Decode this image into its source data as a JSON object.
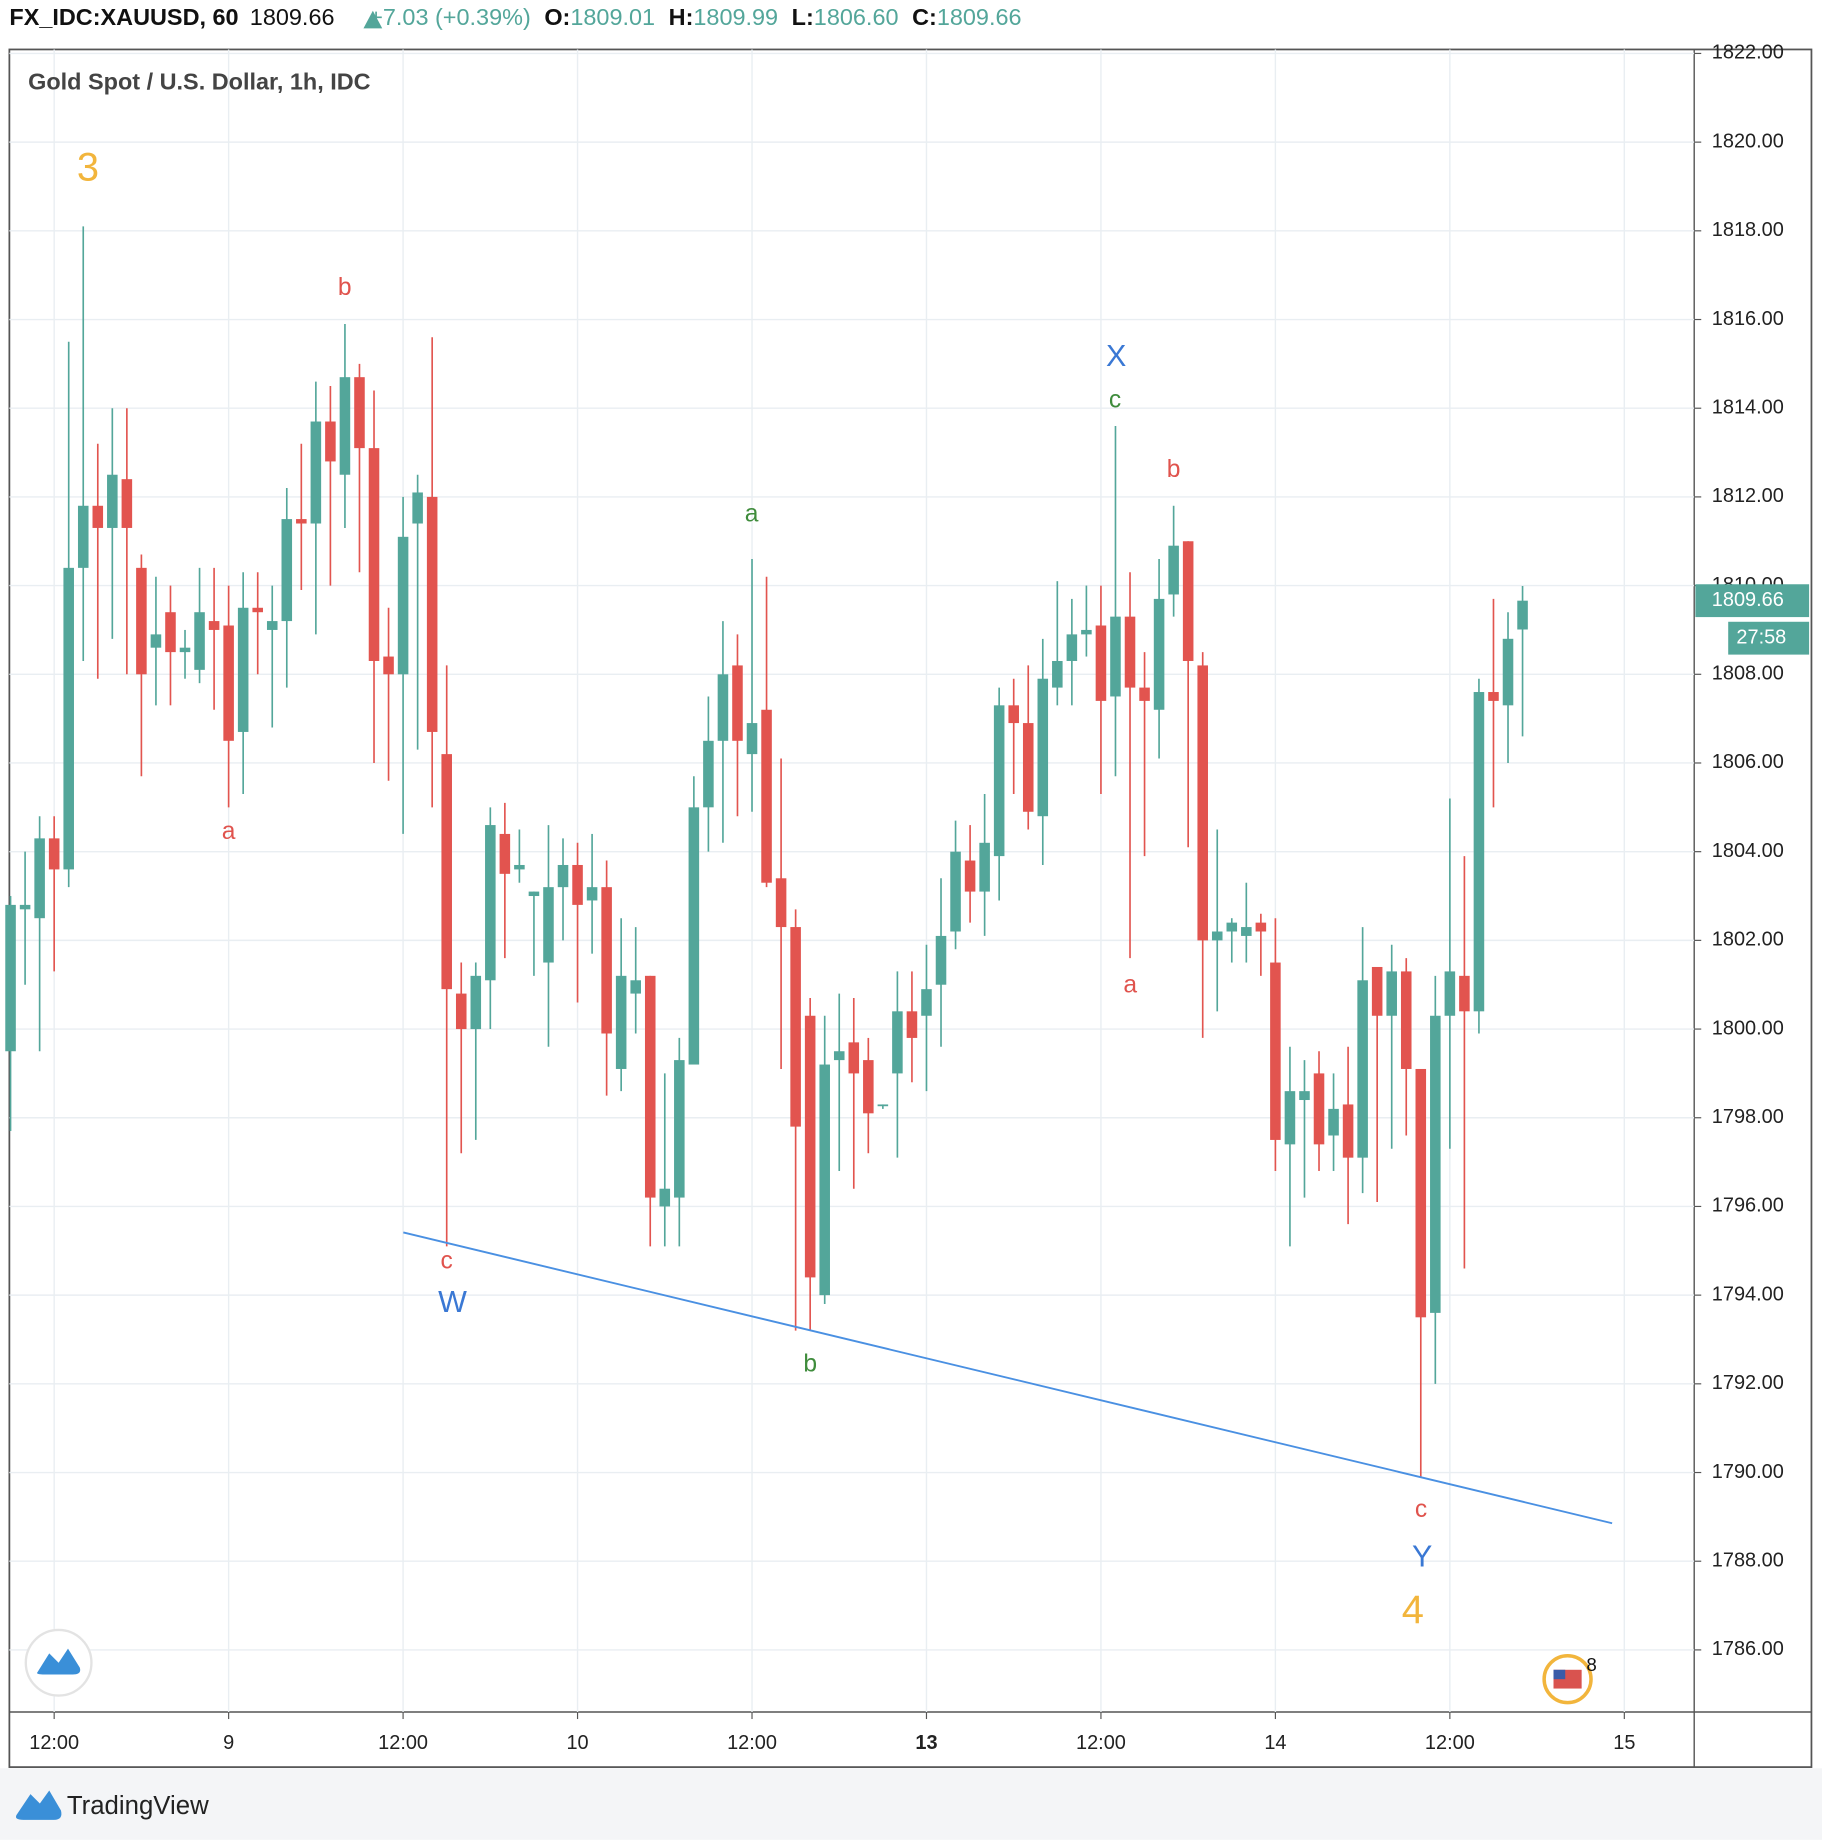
{
  "header": {
    "symbol": "FX_IDC:XAUUSD, 60",
    "last": "1809.66",
    "change": "+7.03 (+0.39%)",
    "ohlc": [
      {
        "key": "O:",
        "value": "1809.01"
      },
      {
        "key": "H:",
        "value": "1809.99"
      },
      {
        "key": "L:",
        "value": "1806.60"
      },
      {
        "key": "C:",
        "value": "1809.66"
      }
    ]
  },
  "chart_data": {
    "type": "candlestick",
    "title": "Gold Spot / U.S. Dollar, 1h, IDC",
    "categories": [
      null,
      null,
      null,
      "12:00",
      null,
      null,
      null,
      null,
      null,
      null,
      null,
      null,
      null,
      null,
      null,
      "9",
      null,
      null,
      null,
      null,
      null,
      null,
      null,
      null,
      null,
      null,
      null,
      "12:00",
      null,
      null,
      null,
      null,
      null,
      null,
      null,
      null,
      null,
      null,
      null,
      "10",
      null,
      null,
      null,
      null,
      null,
      null,
      null,
      null,
      null,
      null,
      null,
      "12:00",
      null,
      null,
      null,
      null,
      null,
      null,
      null,
      null,
      null,
      null,
      null,
      "13",
      null,
      null,
      null,
      null,
      null,
      null,
      null,
      null,
      null,
      null,
      null,
      "12:00",
      null,
      null,
      null,
      null,
      null,
      null,
      null,
      null,
      null,
      null,
      null,
      "14",
      null,
      null,
      null,
      null,
      null,
      null,
      null,
      null,
      null,
      null,
      null,
      "12:00",
      null,
      null,
      null,
      null,
      null,
      null,
      null,
      null,
      null,
      null,
      null,
      "15"
    ],
    "open": [
      1799.5,
      1802.7,
      1802.5,
      1804.3,
      1803.6,
      1810.4,
      1811.8,
      1811.3,
      1812.4,
      1810.4,
      1808.6,
      1809.4,
      1808.5,
      1808.1,
      1809.2,
      1809.1,
      1806.7,
      1809.5,
      1809.0,
      1809.2,
      1811.5,
      1811.4,
      1813.7,
      1812.5,
      1814.7,
      1813.1,
      1808.4,
      1808.0,
      1811.4,
      1812.0,
      1806.2,
      1800.8,
      1800.0,
      1801.1,
      1804.4,
      1803.6,
      1803.0,
      1801.5,
      1803.2,
      1803.7,
      1802.9,
      1803.2,
      1799.1,
      1800.8,
      1801.2,
      1796.0,
      1796.2,
      1799.2,
      1805.0,
      1806.5,
      1808.2,
      1806.2,
      1807.2,
      1803.4,
      1802.3,
      1800.3,
      1794.0,
      1799.3,
      1799.7,
      1799.3,
      1798.3,
      1799.0,
      1800.4,
      1800.3,
      1801.0,
      1802.2,
      1803.8,
      1803.1,
      1803.9,
      1807.3,
      1806.9,
      1804.8,
      1807.7,
      1808.3,
      1808.9,
      1809.1,
      1807.5,
      1809.3,
      1807.7,
      1807.2,
      1809.8,
      1811.0,
      1808.2,
      1802.0,
      1802.2,
      1802.1,
      1802.4,
      1801.5,
      1797.4,
      1798.4,
      1799.0,
      1797.6,
      1798.3,
      1797.1,
      1801.4,
      1800.3,
      1801.3,
      1799.1,
      1793.6,
      1800.3,
      1801.2,
      1800.4,
      1807.6,
      1807.3,
      1809.01,
      null,
      null,
      null,
      null,
      null,
      null,
      null
    ],
    "high": [
      1803.0,
      1804.0,
      1804.8,
      1804.8,
      1815.5,
      1818.1,
      1813.2,
      1814.0,
      1814.0,
      1810.7,
      1810.2,
      1810.0,
      1809.0,
      1810.4,
      1810.4,
      1810.0,
      1810.3,
      1810.3,
      1810.0,
      1812.2,
      1813.2,
      1814.6,
      1814.5,
      1815.9,
      1815.0,
      1814.4,
      1809.5,
      1812.0,
      1812.5,
      1815.6,
      1808.2,
      1801.5,
      1801.5,
      1805.0,
      1805.1,
      1804.5,
      1803.1,
      1804.6,
      1804.3,
      1804.2,
      1804.4,
      1803.8,
      1802.5,
      1802.3,
      1801.2,
      1799.0,
      1799.8,
      1805.7,
      1807.5,
      1809.2,
      1808.9,
      1810.6,
      1810.2,
      1806.1,
      1802.7,
      1800.7,
      1800.3,
      1800.8,
      1800.7,
      1799.8,
      1798.3,
      1801.3,
      1801.3,
      1801.9,
      1803.4,
      1804.7,
      1804.6,
      1805.3,
      1807.7,
      1807.9,
      1808.2,
      1808.8,
      1810.1,
      1809.7,
      1810.0,
      1810.0,
      1813.6,
      1810.3,
      1808.5,
      1810.6,
      1811.8,
      1811.0,
      1808.5,
      1804.5,
      1802.5,
      1803.3,
      1802.6,
      1802.5,
      1799.6,
      1799.3,
      1799.5,
      1799.0,
      1799.6,
      1802.3,
      1801.4,
      1801.9,
      1801.6,
      1799.1,
      1801.2,
      1805.2,
      1803.9,
      1807.9,
      1809.7,
      1809.4,
      1809.99,
      null,
      null,
      null,
      null,
      null,
      null,
      null
    ],
    "low": [
      1797.7,
      1801.0,
      1799.5,
      1801.3,
      1803.2,
      1808.3,
      1807.9,
      1808.8,
      1808.0,
      1805.7,
      1807.3,
      1807.3,
      1807.9,
      1807.8,
      1807.2,
      1805.0,
      1805.3,
      1808.0,
      1806.8,
      1807.7,
      1809.9,
      1808.9,
      1810.0,
      1811.3,
      1810.3,
      1806.0,
      1805.6,
      1804.4,
      1806.3,
      1805.0,
      1795.1,
      1797.2,
      1797.5,
      1800.0,
      1801.6,
      1803.3,
      1801.2,
      1799.6,
      1802.0,
      1800.6,
      1801.7,
      1798.5,
      1798.6,
      1799.9,
      1795.1,
      1795.1,
      1795.1,
      1799.2,
      1804.0,
      1804.2,
      1804.8,
      1804.9,
      1803.2,
      1799.1,
      1793.2,
      1793.2,
      1793.8,
      1796.8,
      1796.4,
      1797.2,
      1798.2,
      1797.1,
      1798.8,
      1798.6,
      1799.6,
      1801.8,
      1802.4,
      1802.1,
      1802.9,
      1805.3,
      1804.5,
      1803.7,
      1807.3,
      1807.3,
      1808.4,
      1805.3,
      1805.7,
      1801.6,
      1803.9,
      1806.1,
      1809.3,
      1804.1,
      1799.8,
      1800.4,
      1801.5,
      1801.5,
      1801.2,
      1796.8,
      1795.1,
      1796.2,
      1796.8,
      1796.8,
      1795.6,
      1796.3,
      1796.1,
      1797.3,
      1797.6,
      1789.9,
      1792.0,
      1797.3,
      1794.6,
      1799.9,
      1805.0,
      1806.0,
      1806.6,
      null,
      null,
      null,
      null,
      null,
      null,
      null
    ],
    "close": [
      1802.8,
      1802.8,
      1804.3,
      1803.6,
      1810.4,
      1811.8,
      1811.3,
      1812.5,
      1811.3,
      1808.0,
      1808.9,
      1808.5,
      1808.6,
      1809.4,
      1809.0,
      1806.5,
      1809.5,
      1809.4,
      1809.2,
      1811.5,
      1811.4,
      1813.7,
      1812.8,
      1814.7,
      1813.1,
      1808.3,
      1808.0,
      1811.1,
      1812.1,
      1806.7,
      1800.9,
      1800.0,
      1801.2,
      1804.6,
      1803.5,
      1803.7,
      1803.1,
      1803.2,
      1803.7,
      1802.8,
      1803.2,
      1799.9,
      1801.2,
      1801.1,
      1796.2,
      1796.4,
      1799.3,
      1805.0,
      1806.5,
      1808.0,
      1806.5,
      1806.9,
      1803.3,
      1802.3,
      1797.8,
      1794.4,
      1799.2,
      1799.5,
      1799.0,
      1798.1,
      1798.3,
      1800.4,
      1799.8,
      1800.9,
      1802.1,
      1804.0,
      1803.1,
      1804.2,
      1807.3,
      1806.9,
      1804.9,
      1807.9,
      1808.3,
      1808.9,
      1809.0,
      1807.4,
      1809.3,
      1807.7,
      1807.4,
      1809.7,
      1810.9,
      1808.3,
      1802.0,
      1802.2,
      1802.4,
      1802.3,
      1802.2,
      1797.5,
      1798.6,
      1798.6,
      1797.4,
      1798.2,
      1797.1,
      1801.1,
      1800.3,
      1801.3,
      1799.1,
      1793.5,
      1800.3,
      1801.3,
      1800.4,
      1807.6,
      1807.4,
      1808.8,
      1809.66,
      null,
      null,
      null,
      null,
      null,
      null,
      null
    ],
    "up_color": "#53a69a",
    "down_color": "#e2544f",
    "ylim": [
      1784.6,
      1822.09
    ],
    "yticks": [
      {
        "value": 1786,
        "label": "1786.00"
      },
      {
        "value": 1788,
        "label": "1788.00"
      },
      {
        "value": 1790,
        "label": "1790.00"
      },
      {
        "value": 1792,
        "label": "1792.00"
      },
      {
        "value": 1794,
        "label": "1794.00"
      },
      {
        "value": 1796,
        "label": "1796.00"
      },
      {
        "value": 1798,
        "label": "1798.00"
      },
      {
        "value": 1800,
        "label": "1800.00"
      },
      {
        "value": 1802,
        "label": "1802.00"
      },
      {
        "value": 1804,
        "label": "1804.00"
      },
      {
        "value": 1806,
        "label": "1806.00"
      },
      {
        "value": 1808,
        "label": "1808.00"
      },
      {
        "value": 1810,
        "label": "1810.00"
      },
      {
        "value": 1812,
        "label": "1812.00"
      },
      {
        "value": 1814,
        "label": "1814.00"
      },
      {
        "value": 1816,
        "label": "1816.00"
      },
      {
        "value": 1818,
        "label": "1818.00"
      },
      {
        "value": 1820,
        "label": "1820.00"
      },
      {
        "value": 1822,
        "label": "1822.00"
      }
    ],
    "grid": true,
    "last_price": 1809.66,
    "countdown": "27:58",
    "annotations": [
      {
        "text": "3",
        "color": "#f2b53c"
      },
      {
        "text": "b",
        "color": "#e0534d"
      },
      {
        "text": "a",
        "color": "#e0534d"
      },
      {
        "text": "c",
        "color": "#e0534d"
      },
      {
        "text": "W",
        "color": "#3a78d4"
      },
      {
        "text": "a",
        "color": "#3f8c3c"
      },
      {
        "text": "b",
        "color": "#3f8c3c"
      },
      {
        "text": "X",
        "color": "#3a78d4"
      },
      {
        "text": "c",
        "color": "#3f8c3c"
      },
      {
        "text": "b",
        "color": "#e0534d"
      },
      {
        "text": "a",
        "color": "#e0534d"
      },
      {
        "text": "c",
        "color": "#e0534d"
      },
      {
        "text": "Y",
        "color": "#3a78d4"
      },
      {
        "text": "4",
        "color": "#f2b53c"
      }
    ],
    "badge": "8"
  },
  "footer": {
    "brand": "TradingView"
  }
}
